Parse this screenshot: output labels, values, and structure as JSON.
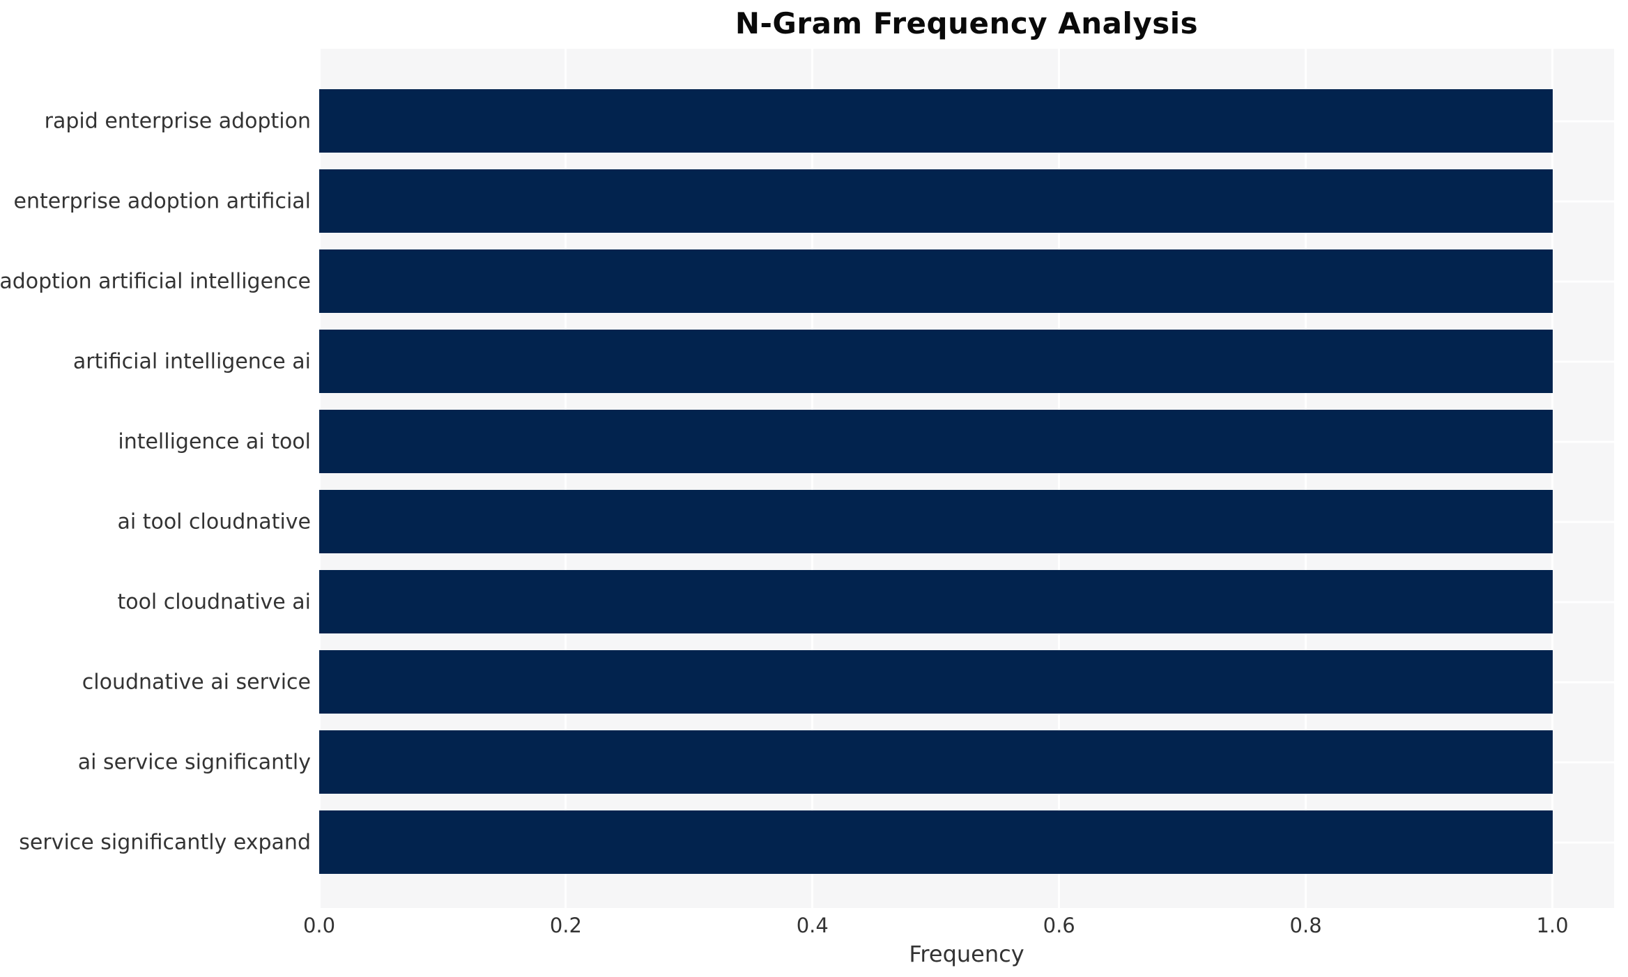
{
  "chart_data": {
    "type": "bar",
    "orientation": "horizontal",
    "title": "N-Gram Frequency Analysis",
    "xlabel": "Frequency",
    "ylabel": "",
    "categories": [
      "rapid enterprise adoption",
      "enterprise adoption artificial",
      "adoption artificial intelligence",
      "artificial intelligence ai",
      "intelligence ai tool",
      "ai tool cloudnative",
      "tool cloudnative ai",
      "cloudnative ai service",
      "ai service significantly",
      "service significantly expand"
    ],
    "values": [
      1.0,
      1.0,
      1.0,
      1.0,
      1.0,
      1.0,
      1.0,
      1.0,
      1.0,
      1.0
    ],
    "xlim": [
      0.0,
      1.05
    ],
    "x_ticks": [
      0.0,
      0.2,
      0.4,
      0.6,
      0.8,
      1.0
    ],
    "x_tick_labels": [
      "0.0",
      "0.2",
      "0.4",
      "0.6",
      "0.8",
      "1.0"
    ],
    "grid": true,
    "legend": false,
    "colors": {
      "bar": "#02234e",
      "plot_background": "#f6f6f7",
      "gridline": "#ffffff",
      "text": "#333333",
      "title": "#0a0a0a"
    }
  }
}
